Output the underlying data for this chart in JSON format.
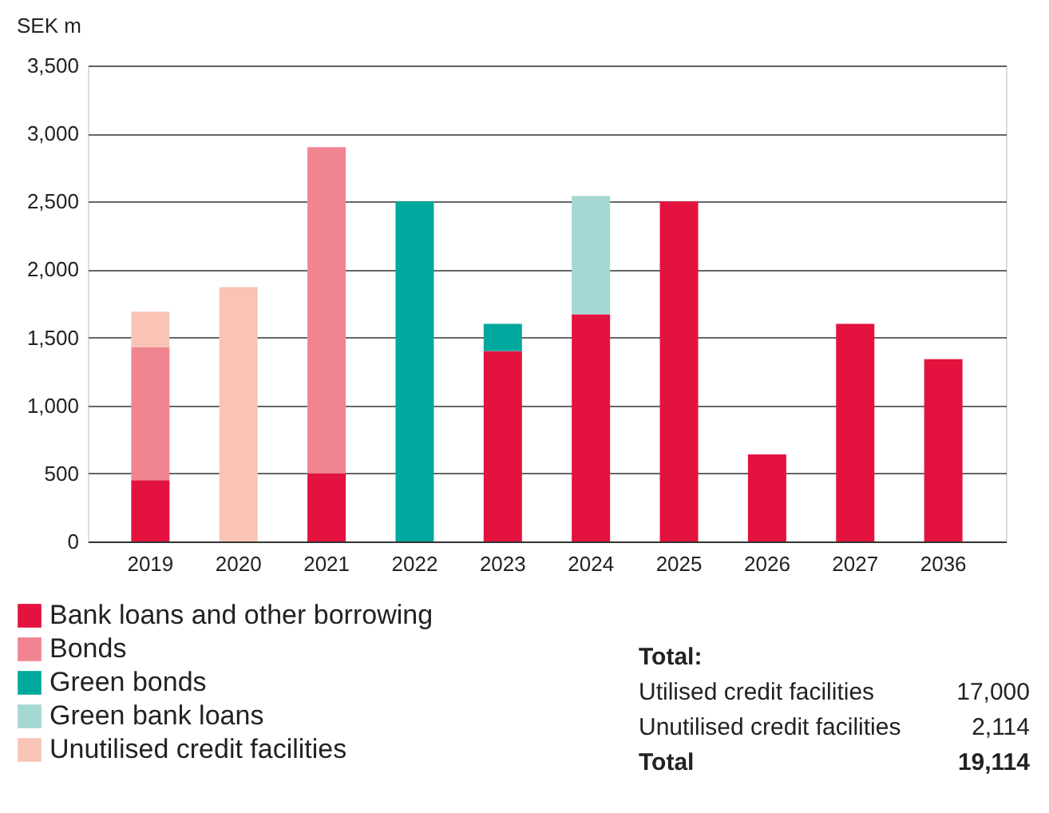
{
  "chart_data": {
    "type": "bar",
    "stacked": true,
    "ylabel": "SEK m",
    "categories": [
      "2019",
      "2020",
      "2021",
      "2022",
      "2023",
      "2024",
      "2025",
      "2026",
      "2027",
      "2036"
    ],
    "series": [
      {
        "name": "Bank loans and other borrowing",
        "color": "#e4123e",
        "values": [
          450,
          null,
          500,
          null,
          1400,
          1670,
          2500,
          640,
          1600,
          1340
        ]
      },
      {
        "name": "Bonds",
        "color": "#f08591",
        "values": [
          980,
          null,
          2400,
          null,
          null,
          null,
          null,
          null,
          null,
          null
        ]
      },
      {
        "name": "Green bonds",
        "color": "#00a99d",
        "values": [
          null,
          null,
          null,
          2500,
          200,
          null,
          null,
          null,
          null,
          null
        ]
      },
      {
        "name": "Green bank loans",
        "color": "#a5d8d3",
        "values": [
          null,
          null,
          null,
          null,
          null,
          870,
          null,
          null,
          null,
          null
        ]
      },
      {
        "name": "Unutilised credit facilities",
        "color": "#f9c4b6",
        "values": [
          260,
          1870,
          null,
          null,
          null,
          null,
          null,
          null,
          null,
          null
        ]
      }
    ],
    "ylim": [
      0,
      3500
    ],
    "yticks": [
      {
        "value": 0,
        "label": "0"
      },
      {
        "value": 500,
        "label": "500"
      },
      {
        "value": 1000,
        "label": "1,000"
      },
      {
        "value": 1500,
        "label": "1,500"
      },
      {
        "value": 2000,
        "label": "2,000"
      },
      {
        "value": 2500,
        "label": "2,500"
      },
      {
        "value": 3000,
        "label": "3,000"
      },
      {
        "value": 3500,
        "label": "3,500"
      }
    ],
    "grid": "y",
    "legend": "bottom left",
    "annotations": [
      "Total:",
      "Utilised credit facilities",
      "17,000",
      "Unutilised credit facilities",
      "2,114",
      "Total",
      "19,114"
    ]
  }
}
